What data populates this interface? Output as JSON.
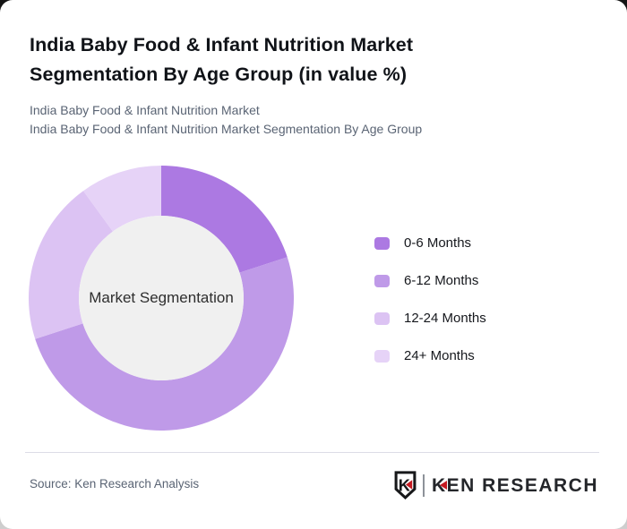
{
  "page": {
    "title_lines": [
      "India Baby Food & Infant Nutrition Market",
      "Segmentation By Age Group (in value %)"
    ],
    "subtitle_lines": [
      "India Baby Food & Infant Nutrition Market",
      "India Baby Food & Infant Nutrition Market Segmentation By Age Group"
    ]
  },
  "chart_data": {
    "type": "pie",
    "subtype": "donut",
    "title": "India Baby Food & Infant Nutrition Market Segmentation By Age Group (in value %)",
    "center_label": "Market Segmentation",
    "categories": [
      "0-6 Months",
      "6-12 Months",
      "12-24 Months",
      "24+ Months"
    ],
    "values": [
      20,
      50,
      20,
      10
    ],
    "values_note": "percent of market value, estimated from arc angles (no data labels shown)",
    "colors": [
      "#ac79e2",
      "#bf9ae8",
      "#dcc3f3",
      "#e6d3f7"
    ],
    "hole_color": "#f0f0f0",
    "legend_position": "right",
    "rotation": "first slice starts at 12 o'clock, clockwise"
  },
  "footer": {
    "source": "Source: Ken Research Analysis",
    "logo": {
      "shield_letter": "K",
      "wordmark": "KEN RESEARCH",
      "accent_color": "#c41a21"
    }
  }
}
